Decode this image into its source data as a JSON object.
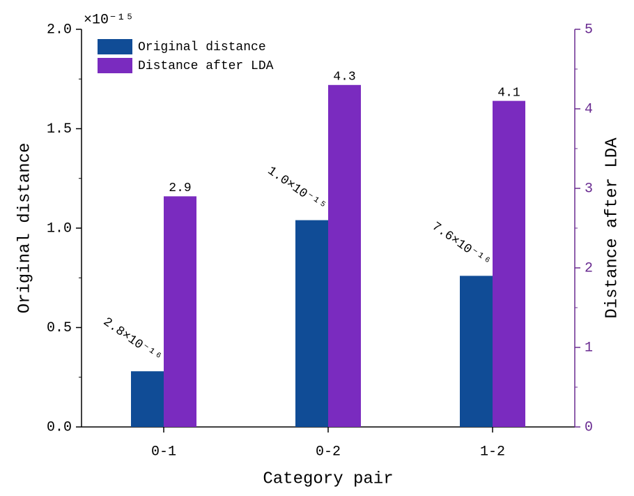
{
  "chart_data": {
    "type": "bar",
    "x_label": "Category pair",
    "y_label": "Original distance",
    "y2_label": "Distance after LDA",
    "y_multiplier": "×10⁻¹⁵",
    "categories": [
      "0-1",
      "0-2",
      "1-2"
    ],
    "series": [
      {
        "name": "Original distance",
        "color": "#104c96",
        "values": [
          0.28,
          1.04,
          0.76
        ],
        "value_labels": [
          "2.8×10⁻¹⁶",
          "1.0×10⁻¹⁵",
          "7.6×10⁻¹⁶"
        ]
      },
      {
        "name": "Distance after LDA",
        "color": "#7a2bbf",
        "axis": "y2",
        "values": [
          2.9,
          4.3,
          4.1
        ]
      }
    ],
    "ylim": [
      0,
      2.0
    ],
    "yticks": [
      {
        "value": 0,
        "label": "0.0"
      },
      0.5,
      {
        "value": 1.0,
        "label": "1.0"
      },
      1.5,
      {
        "value": 2.0,
        "label": "2.0"
      }
    ],
    "y2lim": [
      0,
      5
    ],
    "y2ticks": [
      0,
      1,
      2,
      3,
      4,
      5
    ],
    "y2_axis_color": "#6a2c91",
    "legend": "upper-left",
    "grid": false
  }
}
